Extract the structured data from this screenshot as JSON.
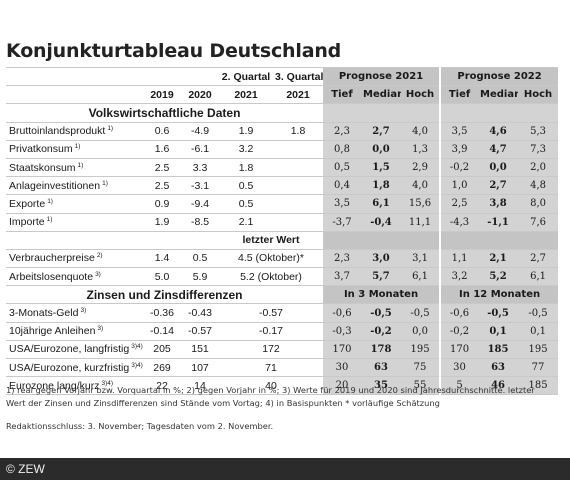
{
  "title": "Konjunkturtableau Deutschland",
  "header": {
    "row1": [
      "",
      "",
      "",
      "2. Quartal",
      "3. Quartal",
      "Prognose 2021",
      "Prognose 2022"
    ],
    "row2": [
      "",
      "2019",
      "2020",
      "2021",
      "2021",
      "Tief",
      "Median",
      "Hoch",
      "Tief",
      "Median",
      "Hoch"
    ]
  },
  "sections": {
    "volkswirtschaft": "Volkswirtschaftliche Daten",
    "zinsen": "Zinsen und Zinsdifferenzen",
    "letzter_wert": "letzter Wert",
    "in3": "In 3 Monaten",
    "in12": "In 12 Monaten"
  },
  "rows_a": [
    {
      "label": "Bruttoinlandsprodukt",
      "sup": "1)",
      "v2019": "0.6",
      "v2020": "-4.9",
      "q2": "1.9",
      "q3": "1.8",
      "p": [
        "2,3",
        "2,7",
        "4,0",
        "3,5",
        "4,6",
        "5,3"
      ]
    },
    {
      "label": "Privatkonsum",
      "sup": "1)",
      "v2019": "1.6",
      "v2020": "-6.1",
      "q2": "3.2",
      "q3": "",
      "p": [
        "0,8",
        "0,0",
        "1,3",
        "3,9",
        "4,7",
        "7,3"
      ]
    },
    {
      "label": "Staatskonsum",
      "sup": "1)",
      "v2019": "2.5",
      "v2020": "3.3",
      "q2": "1.8",
      "q3": "",
      "p": [
        "0,5",
        "1,5",
        "2,9",
        "-0,2",
        "0,0",
        "2,0"
      ]
    },
    {
      "label": "Anlageinvestitionen",
      "sup": "1)",
      "v2019": "2.5",
      "v2020": "-3.1",
      "q2": "0.5",
      "q3": "",
      "p": [
        "0,4",
        "1,8",
        "4,0",
        "1,0",
        "2,7",
        "4,8"
      ]
    },
    {
      "label": "Exporte",
      "sup": "1)",
      "v2019": "0.9",
      "v2020": "-9.4",
      "q2": "0.5",
      "q3": "",
      "p": [
        "3,5",
        "6,1",
        "15,6",
        "2,5",
        "3,8",
        "8,0"
      ]
    },
    {
      "label": "Importe",
      "sup": "1)",
      "v2019": "1.9",
      "v2020": "-8.5",
      "q2": "2.1",
      "q3": "",
      "p": [
        "-3,7",
        "-0,4",
        "11,1",
        "-4,3",
        "-1,1",
        "7,6"
      ]
    }
  ],
  "rows_b": [
    {
      "label": "Verbraucherpreise",
      "sup": "2)",
      "v2019": "1.4",
      "v2020": "0.5",
      "last": "4.5 (Oktober)*",
      "p": [
        "2,3",
        "3,0",
        "3,1",
        "1,1",
        "2,1",
        "2,7"
      ]
    },
    {
      "label": "Arbeitslosenquote",
      "sup": "3)",
      "v2019": "5.0",
      "v2020": "5.9",
      "last": "5.2 (Oktober)",
      "p": [
        "3,7",
        "5,7",
        "6,1",
        "3,2",
        "5,2",
        "6,1"
      ]
    }
  ],
  "rows_c": [
    {
      "label": "3-Monats-Geld",
      "sup": "3)",
      "v2019": "-0.36",
      "v2020": "-0.43",
      "last": "-0.57",
      "p": [
        "-0,6",
        "-0,5",
        "-0,5",
        "-0,6",
        "-0,5",
        "-0,5"
      ]
    },
    {
      "label": "10jährige Anleihen",
      "sup": "3)",
      "v2019": "-0.14",
      "v2020": "-0.57",
      "last": "-0.17",
      "p": [
        "-0,3",
        "-0,2",
        "0,0",
        "-0,2",
        "0,1",
        "0,1"
      ]
    },
    {
      "label": "USA/Eurozone, langfristig",
      "sup": "3)4)",
      "v2019": "205",
      "v2020": "151",
      "last": "172",
      "p": [
        "170",
        "178",
        "195",
        "170",
        "185",
        "195"
      ]
    },
    {
      "label": "USA/Eurozone, kurzfristig",
      "sup": "3)4)",
      "v2019": "269",
      "v2020": "107",
      "last": "71",
      "p": [
        "30",
        "63",
        "75",
        "30",
        "63",
        "77"
      ]
    },
    {
      "label": "Eurozone lang/kurz",
      "sup": "3)4)",
      "v2019": "22",
      "v2020": "14",
      "last": "40",
      "p": [
        "20",
        "35",
        "55",
        "5",
        "46",
        "185"
      ]
    }
  ],
  "notes": {
    "redaktionsschluss": "Redaktionsschluss: 3. November; Tagesdaten vom 2. November.",
    "footnote": "1) real gegen Vorjahr bzw. Vorquartal in %; 2) gegen Vorjahr in %; 3) Werte für 2019 und 2020 sind Jahresdurchschnitte. letzter Wert der Zinsen und Zinsdifferenzen sind Stände vom Vortag; 4) in Basispunkten * vorläufige Schätzung"
  },
  "footer": "© ZEW"
}
